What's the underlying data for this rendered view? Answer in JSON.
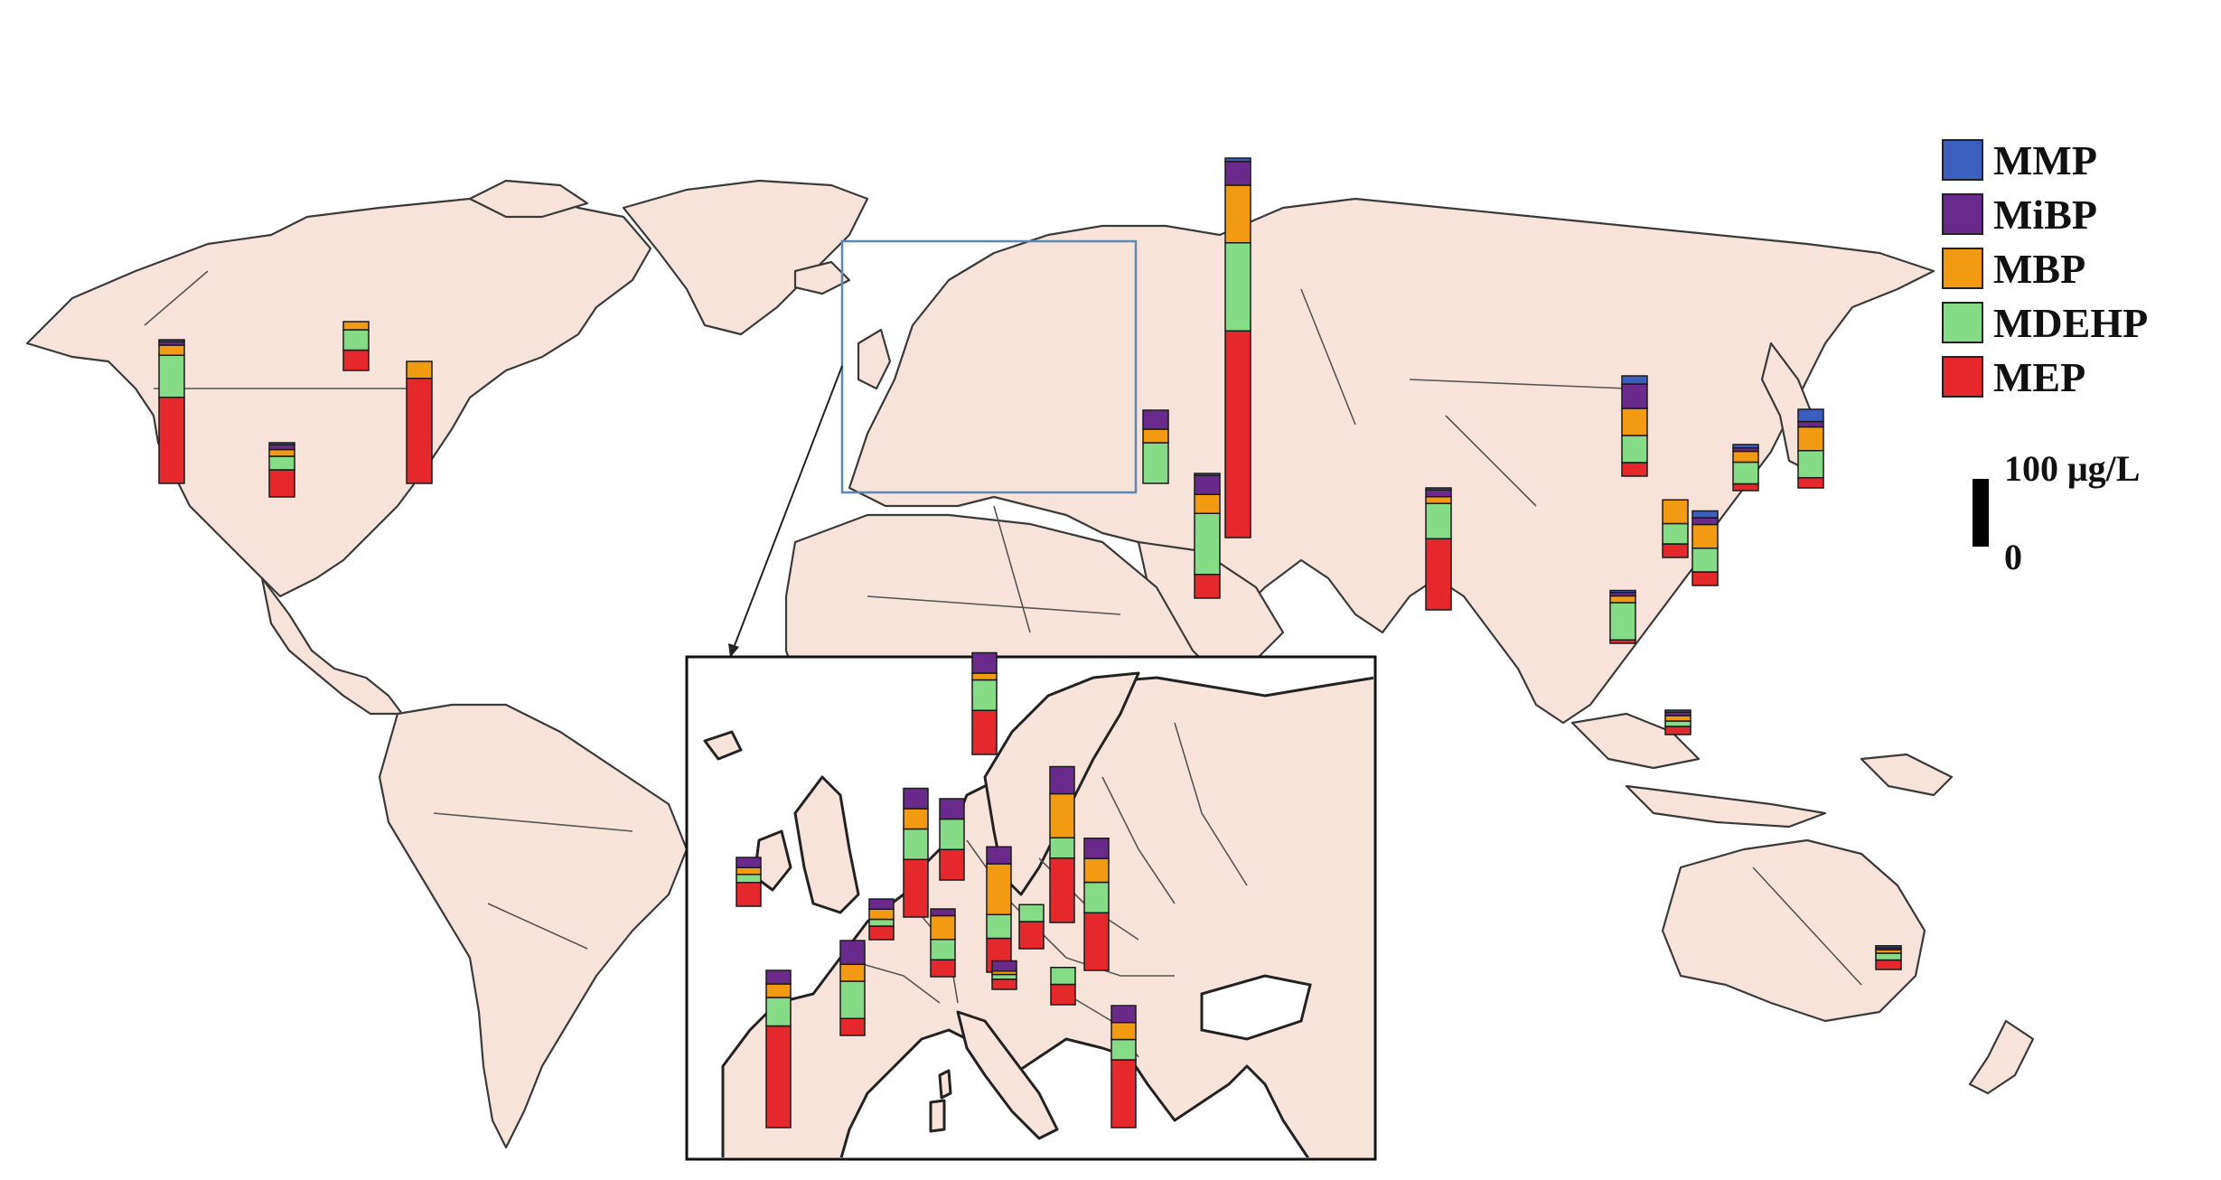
{
  "legend": {
    "items": [
      {
        "label": "MMP",
        "color": "#3a5fbf"
      },
      {
        "label": "MiBP",
        "color": "#6a2a8c"
      },
      {
        "label": "MBP",
        "color": "#f29a12"
      },
      {
        "label": "MDEHP",
        "color": "#86dc86"
      },
      {
        "label": "MEP",
        "color": "#e4282c"
      }
    ]
  },
  "scale": {
    "label_top": "100 μg/L",
    "label_bottom": "0",
    "value": 100
  },
  "chart_data": {
    "type": "stacked-bar-map",
    "unit": "μg/L",
    "series_order": [
      "MEP",
      "MDEHP",
      "MBP",
      "MiBP",
      "MMP"
    ],
    "world_bars": [
      {
        "values": {
          "MEP": 127,
          "MDEHP": 62,
          "MBP": 15,
          "MiBP": 5,
          "MMP": 3
        }
      },
      {
        "values": {
          "MEP": 30,
          "MDEHP": 30,
          "MBP": 12,
          "MiBP": 0,
          "MMP": 0
        }
      },
      {
        "values": {
          "MEP": 40,
          "MDEHP": 20,
          "MBP": 10,
          "MiBP": 7,
          "MMP": 3
        }
      },
      {
        "values": {
          "MEP": 155,
          "MDEHP": 0,
          "MBP": 25,
          "MiBP": 0,
          "MMP": 0
        }
      },
      {
        "values": {
          "MEP": 0,
          "MDEHP": 60,
          "MBP": 20,
          "MiBP": 28,
          "MMP": 0
        }
      },
      {
        "values": {
          "MEP": 35,
          "MDEHP": 90,
          "MBP": 28,
          "MiBP": 28,
          "MMP": 3
        }
      },
      {
        "values": {
          "MEP": 305,
          "MDEHP": 130,
          "MBP": 85,
          "MiBP": 35,
          "MMP": 5
        }
      },
      {
        "values": {
          "MEP": 105,
          "MDEHP": 52,
          "MBP": 10,
          "MiBP": 10,
          "MMP": 3
        }
      },
      {
        "values": {
          "MEP": 20,
          "MDEHP": 40,
          "MBP": 40,
          "MiBP": 36,
          "MMP": 12
        }
      },
      {
        "values": {
          "MEP": 10,
          "MDEHP": 32,
          "MBP": 16,
          "MiBP": 5,
          "MMP": 5
        }
      },
      {
        "values": {
          "MEP": 15,
          "MDEHP": 40,
          "MBP": 35,
          "MiBP": 8,
          "MMP": 18
        }
      },
      {
        "values": {
          "MEP": 20,
          "MDEHP": 30,
          "MBP": 35,
          "MiBP": 0,
          "MMP": 0
        }
      },
      {
        "values": {
          "MEP": 20,
          "MDEHP": 35,
          "MBP": 35,
          "MiBP": 10,
          "MMP": 10
        }
      },
      {
        "values": {
          "MEP": 5,
          "MDEHP": 55,
          "MBP": 10,
          "MiBP": 5,
          "MMP": 3
        }
      },
      {
        "values": {
          "MEP": 12,
          "MDEHP": 8,
          "MBP": 8,
          "MiBP": 5,
          "MMP": 3
        }
      },
      {
        "values": {
          "MEP": 14,
          "MDEHP": 10,
          "MBP": 5,
          "MiBP": 3,
          "MMP": 3
        }
      }
    ],
    "europe_bars": [
      {
        "values": {
          "MEP": 35,
          "MDEHP": 12,
          "MBP": 10,
          "MiBP": 15,
          "MMP": 0
        }
      },
      {
        "values": {
          "MEP": 150,
          "MDEHP": 42,
          "MBP": 20,
          "MiBP": 20,
          "MMP": 0
        }
      },
      {
        "values": {
          "MEP": 25,
          "MDEHP": 55,
          "MBP": 25,
          "MiBP": 35,
          "MMP": 0
        }
      },
      {
        "values": {
          "MEP": 20,
          "MDEHP": 10,
          "MBP": 15,
          "MiBP": 15,
          "MMP": 0
        }
      },
      {
        "values": {
          "MEP": 85,
          "MDEHP": 45,
          "MBP": 30,
          "MiBP": 30,
          "MMP": 0
        }
      },
      {
        "values": {
          "MEP": 45,
          "MDEHP": 45,
          "MBP": 0,
          "MiBP": 30,
          "MMP": 0
        }
      },
      {
        "values": {
          "MEP": 65,
          "MDEHP": 45,
          "MBP": 10,
          "MiBP": 30,
          "MMP": 0
        }
      },
      {
        "values": {
          "MEP": 25,
          "MDEHP": 30,
          "MBP": 35,
          "MiBP": 10,
          "MMP": 0
        }
      },
      {
        "values": {
          "MEP": 50,
          "MDEHP": 35,
          "MBP": 75,
          "MiBP": 25,
          "MMP": 0
        }
      },
      {
        "values": {
          "MEP": 15,
          "MDEHP": 7,
          "MBP": 5,
          "MiBP": 15,
          "MMP": 0
        }
      },
      {
        "values": {
          "MEP": 40,
          "MDEHP": 25,
          "MBP": 0,
          "MiBP": 0,
          "MMP": 0
        }
      },
      {
        "values": {
          "MEP": 95,
          "MDEHP": 30,
          "MBP": 65,
          "MiBP": 40,
          "MMP": 0
        }
      },
      {
        "values": {
          "MEP": 30,
          "MDEHP": 25,
          "MBP": 0,
          "MiBP": 0,
          "MMP": 0
        }
      },
      {
        "values": {
          "MEP": 85,
          "MDEHP": 45,
          "MBP": 35,
          "MiBP": 30,
          "MMP": 0
        }
      },
      {
        "values": {
          "MEP": 100,
          "MDEHP": 30,
          "MBP": 25,
          "MiBP": 25,
          "MMP": 0
        }
      }
    ]
  }
}
